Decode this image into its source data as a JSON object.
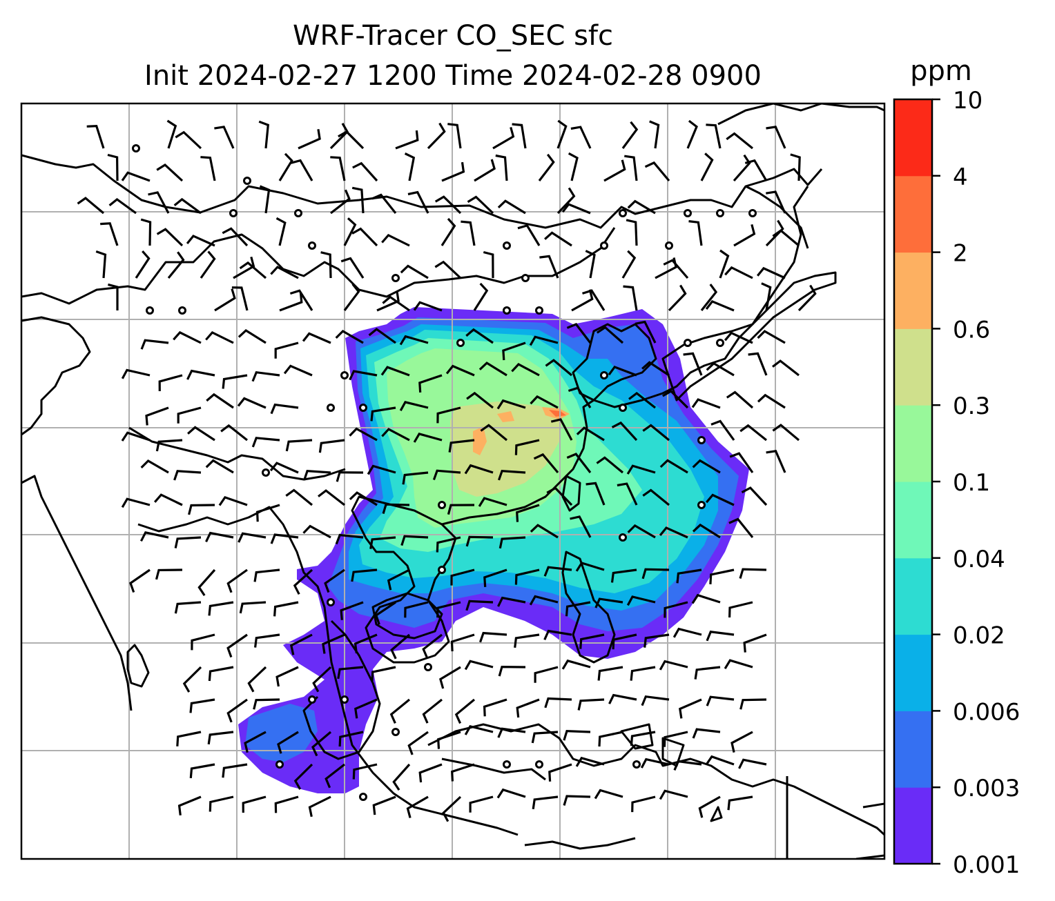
{
  "title_line1": "WRF-Tracer CO_SEC sfc",
  "title_line2": "Init 2024-02-27 1200 Time 2024-02-28 0900",
  "colorbar": {
    "unit": "ppm",
    "levels": [
      "0.001",
      "0.003",
      "0.006",
      "0.02",
      "0.04",
      "0.1",
      "0.3",
      "0.6",
      "2",
      "4",
      "10"
    ],
    "colors": [
      "#6a2cf7",
      "#3570f2",
      "#0ab0e8",
      "#2ddcd2",
      "#6ff8b8",
      "#98f89a",
      "#cfe08c",
      "#fdb061",
      "#fe6e3a",
      "#fc2a18"
    ]
  },
  "map": {
    "background": "#ffffff",
    "coastline_color": "#000000",
    "gridline_color": "#b0b0b0",
    "wind_barb_color": "#000000"
  }
}
